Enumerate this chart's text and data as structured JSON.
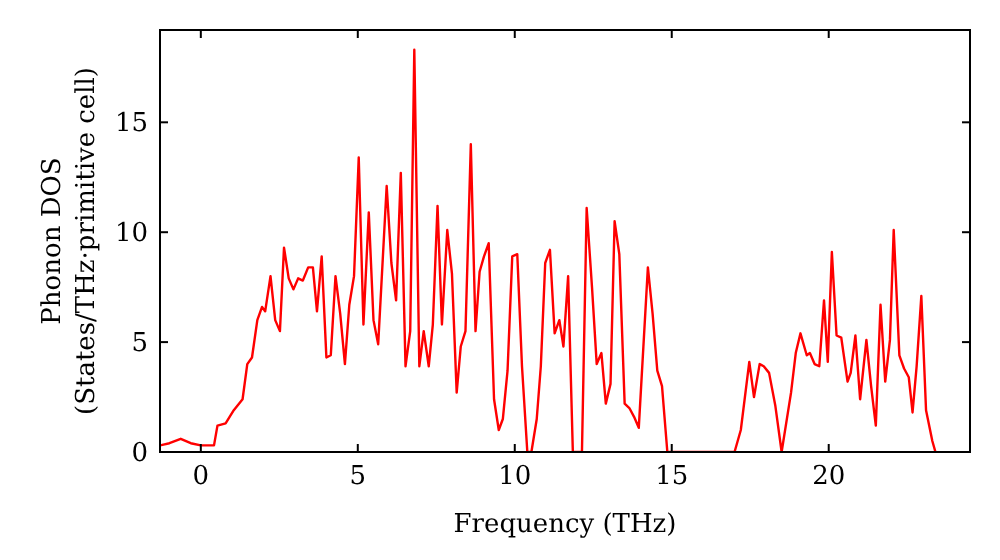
{
  "chart_data": {
    "type": "line",
    "xlabel": "Frequency (THz)",
    "ylabel": "Phonon DOS\n(States/THz·primitive cell)",
    "xlim": [
      -1.3,
      24.5
    ],
    "ylim": [
      0,
      19.2
    ],
    "xticks": [
      0,
      5,
      10,
      15,
      20
    ],
    "yticks": [
      0,
      5,
      10,
      15
    ],
    "grid": false,
    "marker": "none",
    "line_style": "solid",
    "series": [
      {
        "color": "#ff0000",
        "x": [
          -1.3,
          -1.0,
          -0.64,
          -0.32,
          0,
          0.42,
          0.53,
          0.79,
          1.05,
          1.33,
          1.48,
          1.63,
          1.8,
          1.95,
          2.05,
          2.22,
          2.37,
          2.52,
          2.65,
          2.8,
          2.95,
          3.1,
          3.25,
          3.42,
          3.57,
          3.7,
          3.85,
          4.0,
          4.14,
          4.29,
          4.44,
          4.59,
          4.73,
          4.88,
          5.03,
          5.18,
          5.35,
          5.5,
          5.65,
          5.8,
          5.92,
          6.07,
          6.22,
          6.37,
          6.52,
          6.67,
          6.8,
          6.96,
          7.1,
          7.26,
          7.39,
          7.54,
          7.68,
          7.85,
          8.0,
          8.15,
          8.28,
          8.43,
          8.6,
          8.75,
          8.88,
          9.02,
          9.17,
          9.34,
          9.49,
          9.62,
          9.77,
          9.92,
          10.08,
          10.23,
          10.4,
          10.53,
          10.7,
          10.83,
          10.97,
          11.12,
          11.27,
          11.42,
          11.55,
          11.7,
          11.85,
          12.14,
          12.29,
          12.46,
          12.61,
          12.76,
          12.9,
          13.05,
          13.18,
          13.33,
          13.5,
          13.65,
          13.8,
          13.95,
          14.24,
          14.39,
          14.54,
          14.69,
          14.86,
          17.0,
          17.2,
          17.47,
          17.62,
          17.8,
          17.93,
          18.1,
          18.3,
          18.5,
          18.8,
          18.95,
          19.1,
          19.3,
          19.4,
          19.55,
          19.7,
          19.85,
          19.97,
          20.1,
          20.25,
          20.4,
          20.6,
          20.7,
          20.85,
          21.0,
          21.2,
          21.35,
          21.5,
          21.65,
          21.8,
          21.95,
          22.07,
          22.25,
          22.4,
          22.55,
          22.67,
          22.8,
          22.95,
          23.1,
          23.3,
          23.4
        ],
        "values": [
          0.3,
          0.4,
          0.6,
          0.4,
          0.3,
          0.3,
          1.2,
          1.3,
          1.9,
          2.4,
          4.0,
          4.3,
          6.0,
          6.6,
          6.4,
          8.0,
          6.0,
          5.5,
          9.3,
          7.9,
          7.4,
          7.9,
          7.8,
          8.4,
          8.4,
          6.4,
          8.9,
          4.3,
          4.4,
          8.0,
          6.3,
          4.0,
          6.7,
          8.0,
          13.4,
          5.8,
          10.9,
          6.0,
          4.9,
          8.9,
          12.1,
          8.6,
          6.9,
          12.7,
          3.9,
          5.5,
          18.3,
          3.9,
          5.5,
          3.9,
          5.8,
          11.2,
          5.8,
          10.1,
          8.1,
          2.7,
          4.8,
          5.5,
          14.0,
          5.5,
          8.2,
          8.9,
          9.5,
          2.4,
          1.0,
          1.5,
          3.7,
          8.9,
          9.0,
          3.9,
          0,
          0,
          1.5,
          3.9,
          8.6,
          9.2,
          5.4,
          6.0,
          4.8,
          8.0,
          0,
          0,
          11.1,
          7.5,
          4.0,
          4.5,
          2.2,
          3.1,
          10.5,
          9.0,
          2.2,
          2.0,
          1.6,
          1.1,
          8.4,
          6.3,
          3.7,
          3.0,
          0,
          0,
          1.0,
          4.1,
          2.5,
          4.0,
          3.9,
          3.6,
          2.1,
          0,
          2.7,
          4.5,
          5.4,
          4.4,
          4.5,
          4.0,
          3.9,
          6.9,
          4.1,
          9.1,
          5.3,
          5.2,
          3.2,
          3.6,
          5.3,
          2.4,
          5.1,
          3.0,
          1.2,
          6.7,
          3.2,
          5.1,
          10.1,
          4.4,
          3.8,
          3.4,
          1.8,
          3.9,
          7.1,
          1.9,
          0.5,
          0
        ]
      }
    ]
  }
}
